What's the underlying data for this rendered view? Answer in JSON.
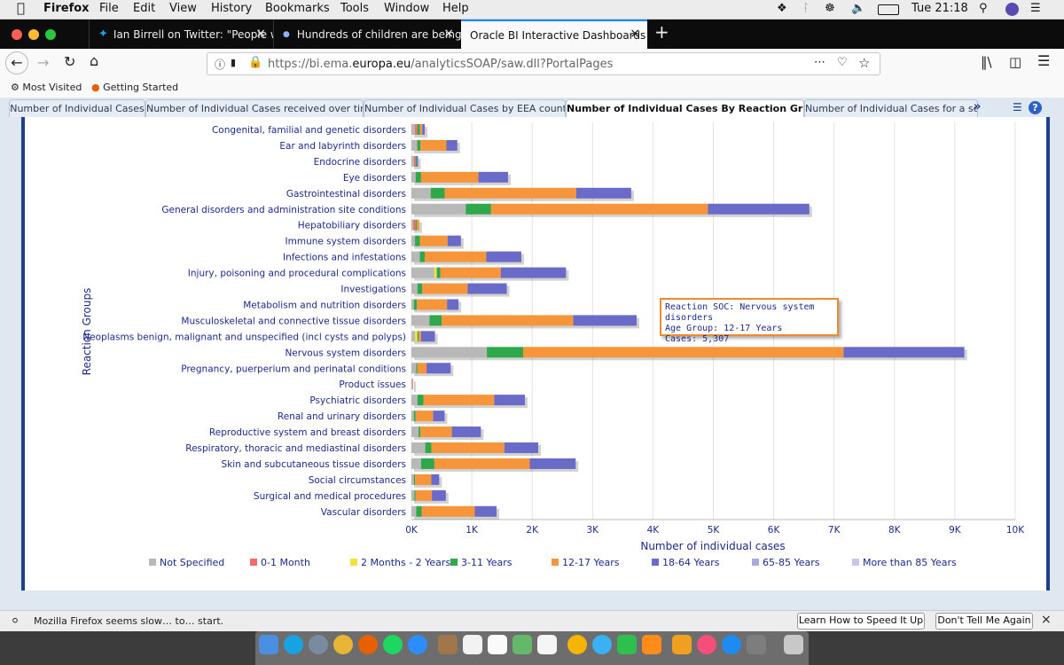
{
  "menubar": {
    "app": "Firefox",
    "items": [
      "File",
      "Edit",
      "View",
      "History",
      "Bookmarks",
      "Tools",
      "Window",
      "Help"
    ],
    "clock": "Tue 21:18"
  },
  "browser_tabs": [
    {
      "label": "Ian Birrell on Twitter: \"People w",
      "icon": "twitter-icon"
    },
    {
      "label": "Hundreds of children are being",
      "icon": "dot-icon"
    },
    {
      "label": "Oracle BI Interactive Dashboards - ",
      "icon": "none"
    }
  ],
  "url": {
    "prefix": "https://bi.ema.",
    "domain": "europa.eu",
    "suffix": "/analyticsSOAP/saw.dll?PortalPages"
  },
  "bookmarks": [
    {
      "label": "Most Visited",
      "icon": "gear-icon"
    },
    {
      "label": "Getting Started",
      "icon": "firefox-icon"
    }
  ],
  "obi_tabs": [
    "Number of Individual Cases",
    "Number of Individual Cases received over time",
    "Number of Individual Cases by EEA countries",
    "Number of Individual Cases By Reaction Groups",
    "Number of Individual Cases for a selec"
  ],
  "obi_more": "»",
  "tooltip": {
    "line1": "Reaction SOC: Nervous system disorders",
    "line2": "Age Group: 12-17 Years",
    "line3": "Cases: 5,307"
  },
  "notification": {
    "text": "Mozilla Firefox seems slow… to… start.",
    "btn1": "Learn How to Speed It Up",
    "btn2": "Don't Tell Me Again",
    "close": "×"
  },
  "colors": {
    "not_specified": "#b8b8b8",
    "m0_1": "#f26b6b",
    "m2_y2": "#f5e23a",
    "y3_11": "#2ea84a",
    "y12_17": "#f7953b",
    "y18_64": "#6a6ac8",
    "y65_85": "#a9a9e0",
    "y85p": "#c9c4ea"
  },
  "chart_data": {
    "type": "bar",
    "orientation": "horizontal",
    "stacked": true,
    "xlabel": "Number of individual cases",
    "ylabel": "Reaction Groups",
    "xlim": [
      0,
      10000
    ],
    "xticks": [
      "0K",
      "1K",
      "2K",
      "3K",
      "4K",
      "5K",
      "6K",
      "7K",
      "8K",
      "9K",
      "10K"
    ],
    "grid": true,
    "legend_placement": "bottom",
    "categories": [
      "Congenital, familial and genetic disorders",
      "Ear and labyrinth disorders",
      "Endocrine disorders",
      "Eye disorders",
      "Gastrointestinal disorders",
      "General disorders and administration site conditions",
      "Hepatobiliary disorders",
      "Immune system disorders",
      "Infections and infestations",
      "Injury, poisoning and procedural complications",
      "Investigations",
      "Metabolism and nutrition disorders",
      "Musculoskeletal and connective tissue disorders",
      "Neoplasms benign, malignant and unspecified (incl cysts and polyps)",
      "Nervous system disorders",
      "Pregnancy, puerperium and perinatal conditions",
      "Product issues",
      "Psychiatric disorders",
      "Renal and urinary disorders",
      "Reproductive system and breast disorders",
      "Respiratory, thoracic and mediastinal disorders",
      "Skin and subcutaneous tissue disorders",
      "Social circumstances",
      "Surgical and medical procedures",
      "Vascular disorders"
    ],
    "series": [
      {
        "name": "Not Specified",
        "color_key": "not_specified",
        "values": [
          60,
          90,
          40,
          70,
          320,
          900,
          30,
          60,
          140,
          380,
          100,
          40,
          300,
          60,
          1250,
          80,
          20,
          100,
          40,
          120,
          230,
          160,
          40,
          50,
          80
        ]
      },
      {
        "name": "0-1 Month",
        "color_key": "m0_1",
        "values": [
          40,
          10,
          30,
          0,
          0,
          0,
          40,
          0,
          0,
          0,
          0,
          0,
          0,
          0,
          0,
          0,
          10,
          0,
          0,
          0,
          0,
          0,
          0,
          0,
          0
        ]
      },
      {
        "name": "2 Months - 2 Years",
        "color_key": "m2_y2",
        "values": [
          0,
          0,
          0,
          0,
          0,
          0,
          0,
          0,
          0,
          40,
          0,
          0,
          0,
          40,
          0,
          0,
          0,
          0,
          0,
          0,
          0,
          0,
          0,
          0,
          0
        ]
      },
      {
        "name": "3-11 Years",
        "color_key": "y3_11",
        "values": [
          40,
          50,
          20,
          90,
          230,
          420,
          20,
          80,
          80,
          60,
          80,
          50,
          200,
          20,
          600,
          20,
          0,
          100,
          30,
          30,
          100,
          220,
          20,
          20,
          90
        ]
      },
      {
        "name": "12-17 Years",
        "color_key": "y12_17",
        "values": [
          40,
          430,
          0,
          950,
          2180,
          3590,
          40,
          460,
          1020,
          1000,
          750,
          500,
          2180,
          40,
          5307,
          150,
          0,
          1170,
          290,
          520,
          1210,
          1580,
          270,
          270,
          880
        ]
      },
      {
        "name": "18-64 Years",
        "color_key": "y18_64",
        "values": [
          40,
          180,
          20,
          490,
          910,
          1680,
          0,
          220,
          580,
          1080,
          650,
          190,
          1050,
          230,
          2000,
          400,
          0,
          510,
          190,
          480,
          560,
          760,
          130,
          230,
          360
        ]
      },
      {
        "name": "65-85 Years",
        "color_key": "y65_85",
        "values": [
          0,
          0,
          0,
          0,
          0,
          0,
          0,
          0,
          0,
          0,
          0,
          0,
          0,
          0,
          0,
          0,
          0,
          0,
          0,
          0,
          0,
          0,
          0,
          0,
          0
        ]
      },
      {
        "name": "More than 85 Years",
        "color_key": "y85p",
        "values": [
          0,
          0,
          0,
          0,
          0,
          0,
          0,
          0,
          0,
          0,
          0,
          0,
          0,
          0,
          0,
          0,
          0,
          0,
          0,
          0,
          0,
          0,
          0,
          0,
          0
        ]
      }
    ]
  }
}
